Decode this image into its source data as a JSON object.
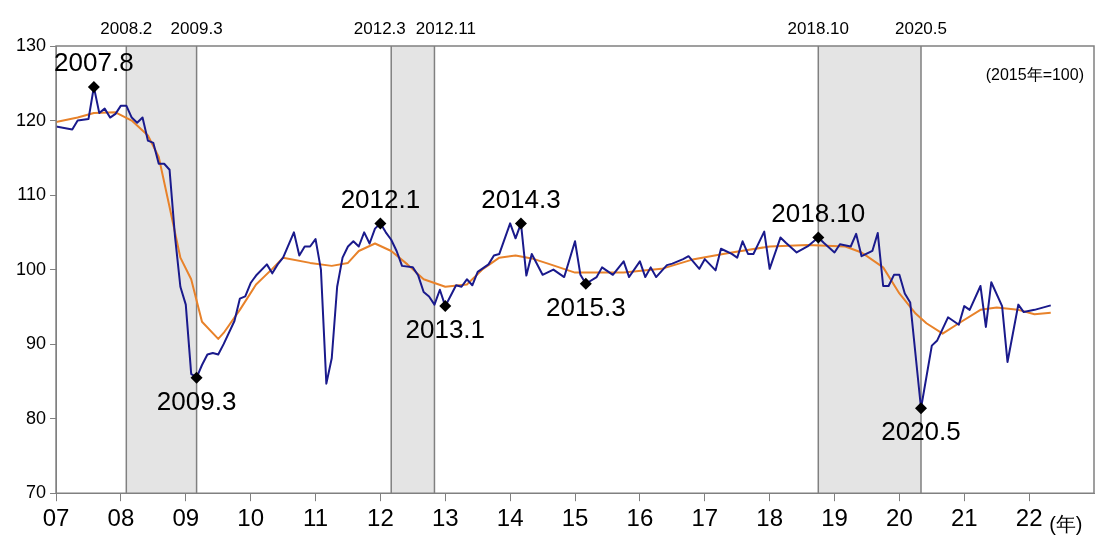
{
  "chart_data": {
    "type": "line",
    "xlabel": "(年)",
    "xlim": [
      "2007-01",
      "2023-01"
    ],
    "ylim": [
      70,
      130
    ],
    "xticks": [
      {
        "value": "2007",
        "label": "07"
      },
      {
        "value": "2008",
        "label": "08"
      },
      {
        "value": "2009",
        "label": "09"
      },
      {
        "value": "2010",
        "label": "10"
      },
      {
        "value": "2011",
        "label": "11"
      },
      {
        "value": "2012",
        "label": "12"
      },
      {
        "value": "2013",
        "label": "13"
      },
      {
        "value": "2014",
        "label": "14"
      },
      {
        "value": "2015",
        "label": "15"
      },
      {
        "value": "2016",
        "label": "16"
      },
      {
        "value": "2017",
        "label": "17"
      },
      {
        "value": "2018",
        "label": "18"
      },
      {
        "value": "2019",
        "label": "19"
      },
      {
        "value": "2020",
        "label": "20"
      },
      {
        "value": "2021",
        "label": "21"
      },
      {
        "value": "2022",
        "label": "22"
      }
    ],
    "yticks": [
      70,
      80,
      90,
      100,
      110,
      120,
      130
    ],
    "grid": false,
    "legend": false,
    "series": [
      {
        "color": "#1a1a8c",
        "x": [
          "2007-01",
          "2007-04",
          "2007-05",
          "2007-07",
          "2007-08",
          "2007-09",
          "2007-10",
          "2007-11",
          "2007-12",
          "2008-01",
          "2008-02",
          "2008-03",
          "2008-04",
          "2008-05",
          "2008-06",
          "2008-07",
          "2008-08",
          "2008-09",
          "2008-10",
          "2008-11",
          "2008-12",
          "2009-01",
          "2009-02",
          "2009-03",
          "2009-04",
          "2009-05",
          "2009-06",
          "2009-07",
          "2009-08",
          "2009-10",
          "2009-11",
          "2009-12",
          "2010-01",
          "2010-02",
          "2010-04",
          "2010-05",
          "2010-06",
          "2010-07",
          "2010-09",
          "2010-10",
          "2010-11",
          "2010-12",
          "2011-01",
          "2011-02",
          "2011-03",
          "2011-04",
          "2011-05",
          "2011-06",
          "2011-07",
          "2011-08",
          "2011-09",
          "2011-10",
          "2011-11",
          "2011-12",
          "2012-01",
          "2012-02",
          "2012-03",
          "2012-04",
          "2012-05",
          "2012-07",
          "2012-08",
          "2012-09",
          "2012-10",
          "2012-11",
          "2012-12",
          "2013-01",
          "2013-02",
          "2013-03",
          "2013-04",
          "2013-05",
          "2013-06",
          "2013-07",
          "2013-09",
          "2013-10",
          "2013-11",
          "2014-01",
          "2014-02",
          "2014-03",
          "2014-04",
          "2014-05",
          "2014-07",
          "2014-09",
          "2014-11",
          "2015-01",
          "2015-02",
          "2015-03",
          "2015-05",
          "2015-06",
          "2015-08",
          "2015-10",
          "2015-11",
          "2016-01",
          "2016-02",
          "2016-03",
          "2016-04",
          "2016-06",
          "2016-07",
          "2016-09",
          "2016-10",
          "2016-12",
          "2017-01",
          "2017-03",
          "2017-04",
          "2017-06",
          "2017-07",
          "2017-08",
          "2017-09",
          "2017-10",
          "2017-12",
          "2018-01",
          "2018-03",
          "2018-04",
          "2018-06",
          "2018-08",
          "2018-10",
          "2018-11",
          "2019-01",
          "2019-02",
          "2019-04",
          "2019-05",
          "2019-06",
          "2019-08",
          "2019-09",
          "2019-10",
          "2019-11",
          "2019-12",
          "2020-01",
          "2020-02",
          "2020-03",
          "2020-05",
          "2020-07",
          "2020-08",
          "2020-10",
          "2020-12",
          "2021-01",
          "2021-02",
          "2021-04",
          "2021-05",
          "2021-06",
          "2021-08",
          "2021-09",
          "2021-11",
          "2021-12",
          "2022-02",
          "2022-05"
        ],
        "values": [
          119.2,
          118.8,
          120.0,
          120.2,
          124.5,
          121.0,
          121.6,
          120.4,
          120.9,
          122.0,
          122.0,
          120.4,
          119.7,
          120.4,
          117.3,
          117.0,
          114.2,
          114.2,
          113.4,
          104.5,
          97.7,
          95.3,
          86.0,
          85.5,
          87.2,
          88.6,
          88.8,
          88.6,
          90.0,
          93.1,
          96.1,
          96.4,
          98.2,
          99.2,
          100.7,
          99.5,
          100.7,
          101.6,
          105.0,
          101.9,
          103.1,
          103.1,
          104.1,
          100.0,
          84.7,
          88.1,
          97.7,
          101.6,
          103.1,
          103.8,
          103.1,
          105.0,
          103.5,
          105.5,
          106.2,
          105.0,
          104.0,
          102.5,
          100.5,
          100.3,
          99.2,
          97.0,
          96.4,
          95.3,
          97.3,
          95.1,
          96.5,
          97.9,
          97.7,
          98.7,
          97.9,
          99.7,
          100.7,
          101.9,
          102.1,
          106.2,
          104.2,
          106.2,
          99.2,
          102.1,
          99.3,
          100.0,
          99.0,
          103.8,
          99.3,
          98.1,
          99.0,
          100.3,
          99.3,
          101.1,
          99.0,
          101.1,
          99.0,
          100.3,
          99.0,
          100.6,
          100.8,
          101.4,
          101.8,
          100.1,
          101.4,
          99.9,
          102.8,
          102.1,
          101.6,
          103.8,
          102.1,
          102.1,
          105.1,
          100.1,
          104.3,
          103.6,
          102.3,
          103.1,
          104.3,
          103.6,
          102.3,
          103.4,
          103.1,
          104.8,
          101.8,
          102.5,
          104.9,
          97.8,
          97.8,
          99.3,
          99.3,
          96.8,
          95.6,
          81.4,
          89.8,
          90.5,
          93.6,
          92.6,
          95.1,
          94.6,
          97.8,
          92.3,
          98.3,
          95.1,
          87.6,
          95.3,
          94.3,
          94.6,
          95.2
        ]
      },
      {
        "color": "#e8822a",
        "x": [
          "2007-01",
          "2007-05",
          "2007-08",
          "2007-12",
          "2008-03",
          "2008-06",
          "2008-08",
          "2008-10",
          "2008-12",
          "2009-02",
          "2009-04",
          "2009-07",
          "2009-08",
          "2009-11",
          "2010-02",
          "2010-05",
          "2010-07",
          "2010-12",
          "2011-04",
          "2011-07",
          "2011-09",
          "2011-12",
          "2012-03",
          "2012-06",
          "2012-09",
          "2013-01",
          "2013-05",
          "2013-08",
          "2013-11",
          "2014-02",
          "2014-05",
          "2014-08",
          "2015-01",
          "2015-10",
          "2016-05",
          "2016-11",
          "2017-06",
          "2018-01",
          "2018-08",
          "2019-03",
          "2019-06",
          "2019-10",
          "2020-01",
          "2020-04",
          "2020-06",
          "2020-09",
          "2020-12",
          "2021-04",
          "2021-07",
          "2021-11",
          "2022-02",
          "2022-05"
        ],
        "values": [
          119.8,
          120.4,
          121.0,
          121.1,
          120.0,
          118.0,
          115.1,
          108.4,
          101.6,
          98.7,
          93.0,
          90.7,
          91.5,
          94.6,
          98.0,
          100.1,
          101.6,
          100.9,
          100.5,
          100.9,
          102.5,
          103.5,
          102.5,
          100.7,
          98.7,
          97.7,
          98.0,
          100.1,
          101.6,
          101.9,
          101.5,
          100.8,
          99.6,
          99.6,
          100.1,
          101.4,
          102.3,
          103.1,
          103.3,
          103.1,
          102.3,
          100.3,
          96.8,
          94.1,
          92.8,
          91.4,
          92.8,
          94.6,
          94.9,
          94.6,
          94.0,
          94.2
        ]
      }
    ],
    "bands": [
      {
        "axis": "x",
        "from": "2008-02",
        "to": "2009-03",
        "color": "#e4e4e4"
      },
      {
        "axis": "x",
        "from": "2012-03",
        "to": "2012-11",
        "color": "#e4e4e4"
      },
      {
        "axis": "x",
        "from": "2018-10",
        "to": "2020-05",
        "color": "#e4e4e4"
      }
    ],
    "ref_lines": [
      {
        "axis": "x",
        "value": "2008-02",
        "label": "2008.2",
        "color": "#808080"
      },
      {
        "axis": "x",
        "value": "2009-03",
        "label": "2009.3",
        "color": "#808080"
      },
      {
        "axis": "x",
        "value": "2012-03",
        "label": "2012.3",
        "color": "#808080"
      },
      {
        "axis": "x",
        "value": "2012-11",
        "label": "2012.11",
        "color": "#808080"
      },
      {
        "axis": "x",
        "value": "2018-10",
        "label": "2018.10",
        "color": "#808080"
      },
      {
        "axis": "x",
        "value": "2020-05",
        "label": "2020.5",
        "color": "#808080"
      }
    ],
    "annotations": [
      {
        "text": "2007.8",
        "x": "2007-08",
        "y": 124.5
      },
      {
        "text": "2009.3",
        "x": "2009-03",
        "y": 85.5
      },
      {
        "text": "2012.1",
        "x": "2012-01",
        "y": 106.2
      },
      {
        "text": "2013.1",
        "x": "2013-01",
        "y": 95.1
      },
      {
        "text": "2014.3",
        "x": "2014-03",
        "y": 106.2
      },
      {
        "text": "2015.3",
        "x": "2015-03",
        "y": 98.1
      },
      {
        "text": "2018.10",
        "x": "2018-10",
        "y": 104.3
      },
      {
        "text": "2020.5",
        "x": "2020-05",
        "y": 81.4
      },
      "(2015年=100)"
    ]
  }
}
